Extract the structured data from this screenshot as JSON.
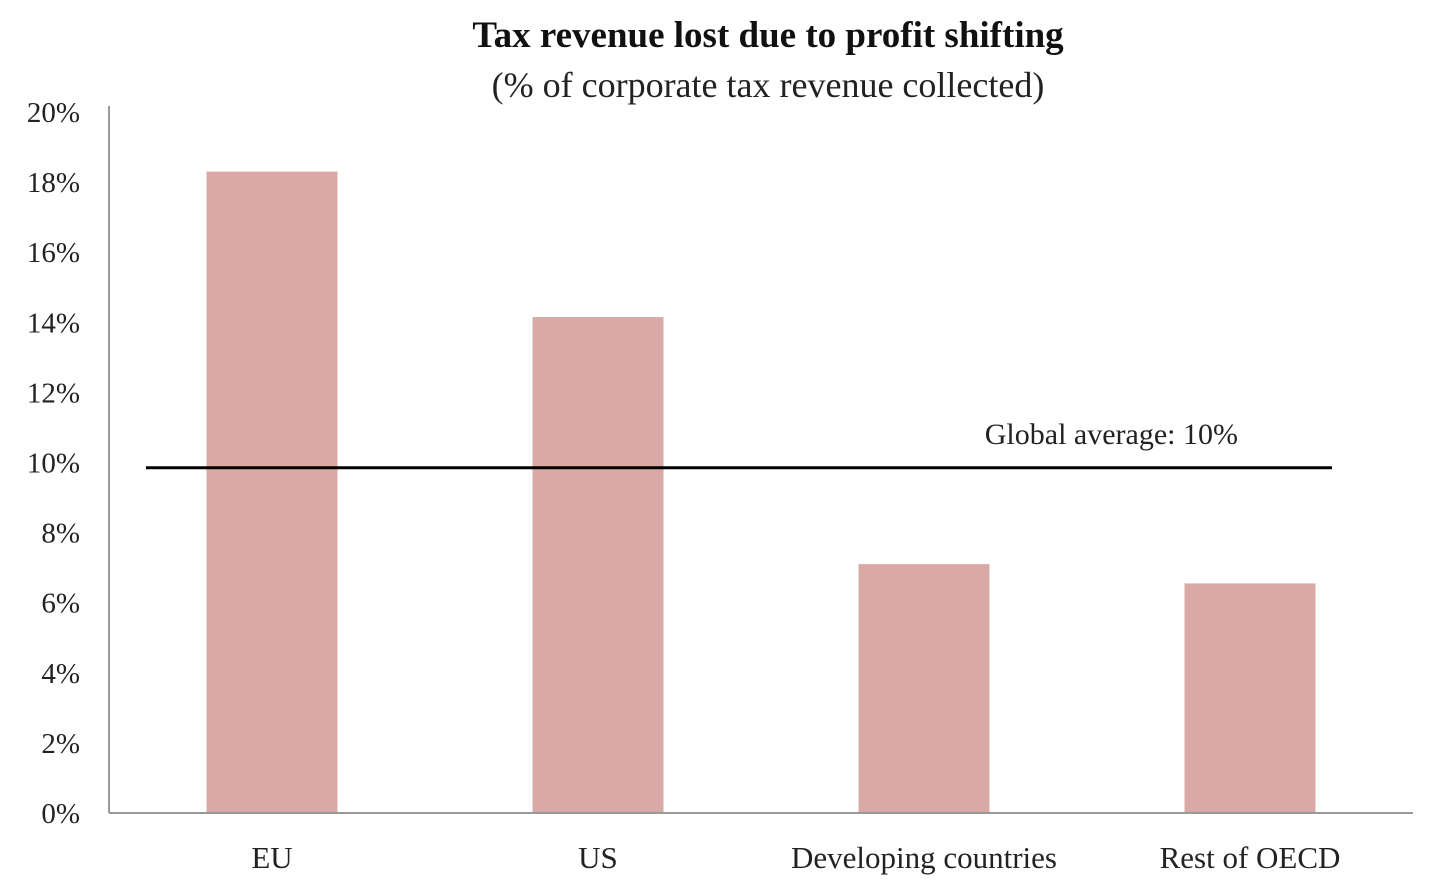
{
  "chart_data": {
    "type": "bar",
    "title": "Tax revenue lost due to profit shifting",
    "subtitle": "(% of corporate tax revenue collected)",
    "categories": [
      "EU",
      "US",
      "Developing countries",
      "Rest of OECD"
    ],
    "values": [
      18.3,
      14.15,
      7.1,
      6.55
    ],
    "value_unit": "%",
    "ylim": [
      0,
      20
    ],
    "yticks": [
      0,
      2,
      4,
      6,
      8,
      10,
      12,
      14,
      16,
      18,
      20
    ],
    "ytick_labels": [
      "0%",
      "2%",
      "4%",
      "6%",
      "8%",
      "10%",
      "12%",
      "14%",
      "16%",
      "18%",
      "20%"
    ],
    "xlabel": "",
    "ylabel": "",
    "grid": false,
    "legend": "none",
    "bar_color": "#d9a9a6",
    "reference_line": {
      "value": 9.85,
      "label": "Global average: 10%",
      "color": "#000000"
    }
  }
}
